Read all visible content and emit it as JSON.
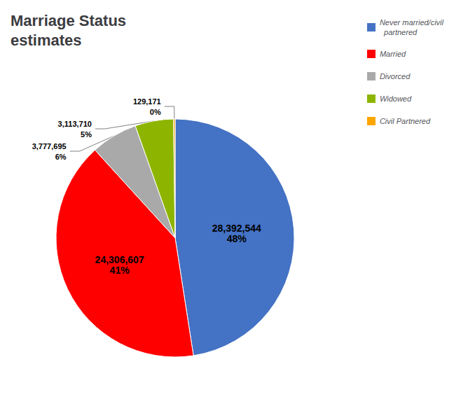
{
  "chart_data": {
    "type": "pie",
    "title": "Marriage Status\nestimates",
    "categories": [
      "Never married/civil\n  partnered",
      "Married",
      "Divorced",
      "Widowed",
      "Civil Partnered"
    ],
    "values": [
      28392544,
      24306607,
      3777695,
      3113710,
      129171
    ],
    "value_labels": [
      "28,392,544\n48%",
      "24,306,607\n41%",
      "3,777,695\n6%",
      "3,113,710\n5%",
      "129,171\n0%"
    ],
    "colors": [
      "#4472c4",
      "#ff0000",
      "#a9a9a9",
      "#8db500",
      "#ffa500"
    ],
    "legend": "upper right"
  }
}
